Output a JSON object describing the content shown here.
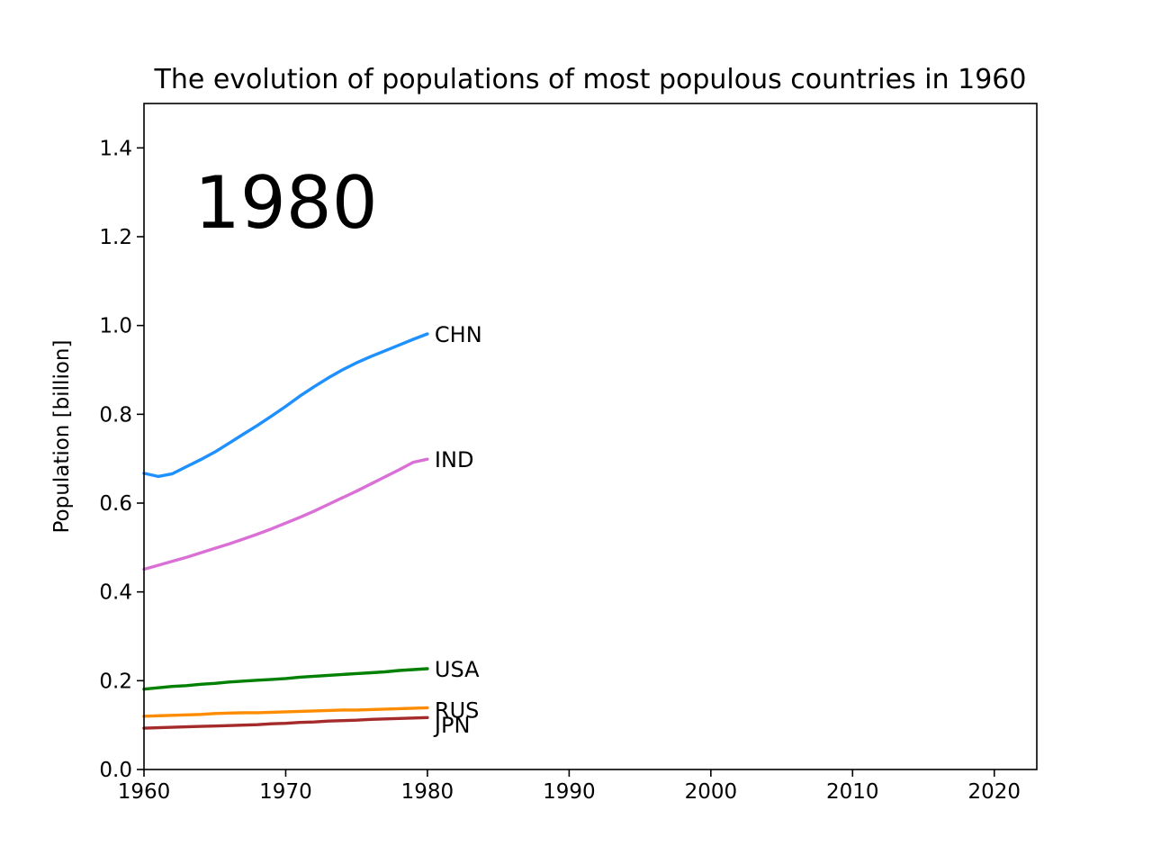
{
  "chart_data": {
    "type": "line",
    "title": "The evolution of populations of most populous countries in 1960",
    "xlabel": "",
    "ylabel": "Population [billion]",
    "xlim": [
      1960,
      2023
    ],
    "ylim": [
      0.0,
      1.5
    ],
    "x_ticks": [
      1960,
      1970,
      1980,
      1990,
      2000,
      2010,
      2020
    ],
    "y_ticks": [
      0.0,
      0.2,
      0.4,
      0.6,
      0.8,
      1.0,
      1.2,
      1.4
    ],
    "y_tick_labels": [
      "0.0",
      "0.2",
      "0.4",
      "0.6",
      "0.8",
      "1.0",
      "1.2",
      "1.4"
    ],
    "annotation_year": "1980",
    "grid": false,
    "legend": "none",
    "x": [
      1960,
      1961,
      1962,
      1963,
      1964,
      1965,
      1966,
      1967,
      1968,
      1969,
      1970,
      1971,
      1972,
      1973,
      1974,
      1975,
      1976,
      1977,
      1978,
      1979,
      1980
    ],
    "series": [
      {
        "name": "CHN",
        "color": "#1e90ff",
        "values": [
          0.667,
          0.66,
          0.666,
          0.682,
          0.698,
          0.715,
          0.735,
          0.755,
          0.775,
          0.796,
          0.818,
          0.841,
          0.862,
          0.882,
          0.9,
          0.916,
          0.93,
          0.943,
          0.956,
          0.969,
          0.981
        ]
      },
      {
        "name": "IND",
        "color": "#da70d6",
        "values": [
          0.451,
          0.46,
          0.469,
          0.478,
          0.488,
          0.498,
          0.508,
          0.519,
          0.53,
          0.542,
          0.555,
          0.568,
          0.582,
          0.597,
          0.612,
          0.627,
          0.643,
          0.659,
          0.675,
          0.692,
          0.699
        ]
      },
      {
        "name": "USA",
        "color": "#008000",
        "values": [
          0.181,
          0.184,
          0.187,
          0.189,
          0.192,
          0.194,
          0.197,
          0.199,
          0.201,
          0.203,
          0.205,
          0.208,
          0.21,
          0.212,
          0.214,
          0.216,
          0.218,
          0.22,
          0.223,
          0.225,
          0.227
        ]
      },
      {
        "name": "RUS",
        "color": "#ff8c00",
        "values": [
          0.12,
          0.121,
          0.122,
          0.123,
          0.124,
          0.126,
          0.127,
          0.128,
          0.128,
          0.129,
          0.13,
          0.131,
          0.132,
          0.133,
          0.134,
          0.134,
          0.135,
          0.136,
          0.137,
          0.138,
          0.139
        ]
      },
      {
        "name": "JPN",
        "color": "#a52a2a",
        "values": [
          0.093,
          0.094,
          0.095,
          0.096,
          0.097,
          0.098,
          0.099,
          0.1,
          0.101,
          0.103,
          0.104,
          0.106,
          0.107,
          0.109,
          0.11,
          0.111,
          0.113,
          0.114,
          0.115,
          0.116,
          0.117
        ]
      }
    ],
    "label_y_offsets": {
      "CHN": 0,
      "IND": 0,
      "USA": 0,
      "RUS": -0.004,
      "JPN": -0.016
    }
  }
}
